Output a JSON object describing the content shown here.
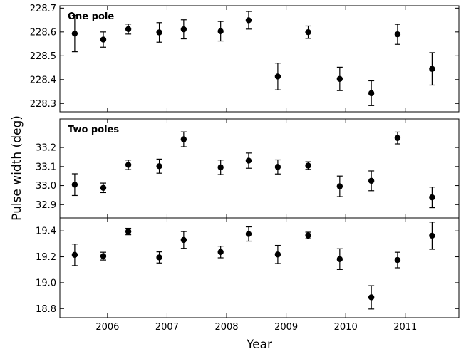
{
  "chart_data": {
    "type": "scatter",
    "xlabel": "Year",
    "ylabel": "Pulse width (deg)",
    "x_ticks": [
      2006,
      2007,
      2008,
      2009,
      2010,
      2011
    ],
    "xlim": [
      2005.2,
      2011.9
    ],
    "x": [
      2005.45,
      2005.93,
      2006.35,
      2006.87,
      2007.28,
      2007.9,
      2008.37,
      2008.86,
      2009.37,
      2009.9,
      2010.43,
      2010.87,
      2011.45
    ],
    "panels": [
      {
        "title": "One pole",
        "ylim": [
          228.265,
          228.71
        ],
        "y_ticks": [
          228.3,
          228.4,
          228.5,
          228.6,
          228.7
        ],
        "y_tick_labels": [
          "228.3",
          "228.4",
          "228.5",
          "228.6",
          "228.7"
        ],
        "y": [
          228.593,
          228.568,
          228.612,
          228.598,
          228.611,
          228.603,
          228.649,
          228.413,
          228.599,
          228.403,
          228.343,
          228.59,
          228.445
        ],
        "err": [
          0.076,
          0.032,
          0.021,
          0.041,
          0.04,
          0.041,
          0.037,
          0.056,
          0.026,
          0.049,
          0.052,
          0.042,
          0.068
        ]
      },
      {
        "title": "Two poles",
        "ylim": [
          32.83,
          33.35
        ],
        "y_ticks": [
          32.9,
          33.0,
          33.1,
          33.2
        ],
        "y_tick_labels": [
          "32.9",
          "33.0",
          "33.1",
          "33.2"
        ],
        "y": [
          33.005,
          32.988,
          33.109,
          33.102,
          33.243,
          33.096,
          33.131,
          33.098,
          33.105,
          32.996,
          33.025,
          33.25,
          32.938
        ],
        "err": [
          0.057,
          0.025,
          0.025,
          0.037,
          0.039,
          0.038,
          0.04,
          0.037,
          0.02,
          0.054,
          0.052,
          0.031,
          0.054
        ]
      },
      {
        "title": "",
        "ylim": [
          18.73,
          19.5
        ],
        "y_ticks": [
          18.8,
          19.0,
          19.2,
          19.4
        ],
        "y_tick_labels": [
          "18.8",
          "19.0",
          "19.2",
          "19.4"
        ],
        "y": [
          19.215,
          19.205,
          19.395,
          19.195,
          19.33,
          19.237,
          19.376,
          19.218,
          19.365,
          19.182,
          18.887,
          19.175,
          19.363
        ],
        "err": [
          0.083,
          0.03,
          0.025,
          0.043,
          0.065,
          0.045,
          0.055,
          0.07,
          0.025,
          0.08,
          0.09,
          0.06,
          0.105
        ]
      }
    ]
  }
}
